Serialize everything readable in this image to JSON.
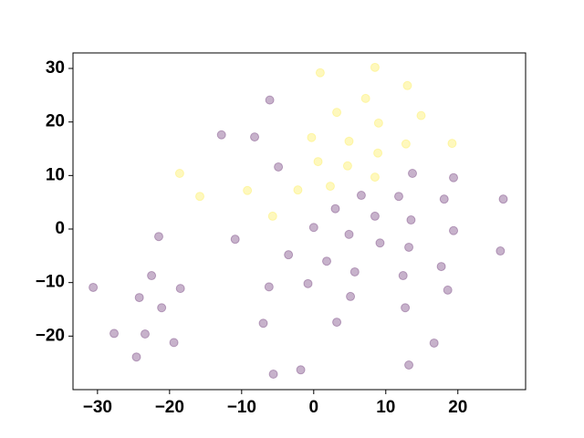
{
  "chart_data": {
    "type": "scatter",
    "xlim": [
      -33.4,
      29.4
    ],
    "ylim": [
      -30.0,
      32.9
    ],
    "xticks": [
      {
        "value": -30,
        "label": "−30"
      },
      {
        "value": -20,
        "label": "−20"
      },
      {
        "value": -10,
        "label": "−10"
      },
      0,
      10,
      20
    ],
    "yticks": [
      {
        "value": -20,
        "label": "−20"
      },
      {
        "value": -10,
        "label": "−10"
      },
      0,
      10,
      20,
      30
    ],
    "grid": false,
    "alpha": 0.3,
    "series": [
      {
        "color": "#fde725",
        "x": [
          0.9,
          8.5,
          13.0,
          7.2,
          3.2,
          14.9,
          9.0,
          -0.3,
          4.9,
          19.2,
          12.8,
          8.9,
          0.6,
          4.7,
          -18.6,
          8.5,
          2.3,
          -2.2,
          -9.2,
          -15.8,
          -5.7
        ],
        "values": [
          29.2,
          30.2,
          26.8,
          24.4,
          21.8,
          21.2,
          19.8,
          17.1,
          16.4,
          16.0,
          15.9,
          14.2,
          12.6,
          11.8,
          10.4,
          9.7,
          8.0,
          7.3,
          7.2,
          6.1,
          2.4
        ]
      },
      {
        "color": "#440154",
        "x": [
          -6.1,
          -12.8,
          -8.2,
          -4.9,
          13.7,
          19.4,
          6.6,
          11.8,
          18.1,
          26.3,
          3.0,
          8.5,
          13.5,
          0.0,
          19.4,
          -21.5,
          4.9,
          -10.9,
          9.2,
          13.2,
          25.9,
          -3.5,
          1.8,
          17.7,
          5.7,
          -22.5,
          12.4,
          -30.6,
          -18.5,
          -6.2,
          -0.8,
          18.6,
          -24.2,
          5.1,
          -21.1,
          12.7,
          -7.0,
          3.2,
          -27.7,
          -23.4,
          -19.4,
          16.7,
          -24.6,
          13.2,
          -1.8,
          -5.6
        ],
        "values": [
          24.1,
          17.6,
          17.2,
          11.6,
          10.4,
          9.6,
          6.3,
          6.1,
          5.6,
          5.6,
          3.8,
          2.4,
          1.7,
          0.3,
          -0.3,
          -1.4,
          -1.0,
          -1.9,
          -2.6,
          -3.4,
          -4.1,
          -4.8,
          -6.0,
          -7.0,
          -8.0,
          -8.7,
          -8.7,
          -10.9,
          -11.1,
          -10.8,
          -10.2,
          -11.4,
          -12.8,
          -12.6,
          -14.7,
          -14.7,
          -17.6,
          -17.4,
          -19.5,
          -19.6,
          -21.2,
          -21.3,
          -23.9,
          -25.4,
          -26.3,
          -27.1
        ]
      }
    ]
  }
}
